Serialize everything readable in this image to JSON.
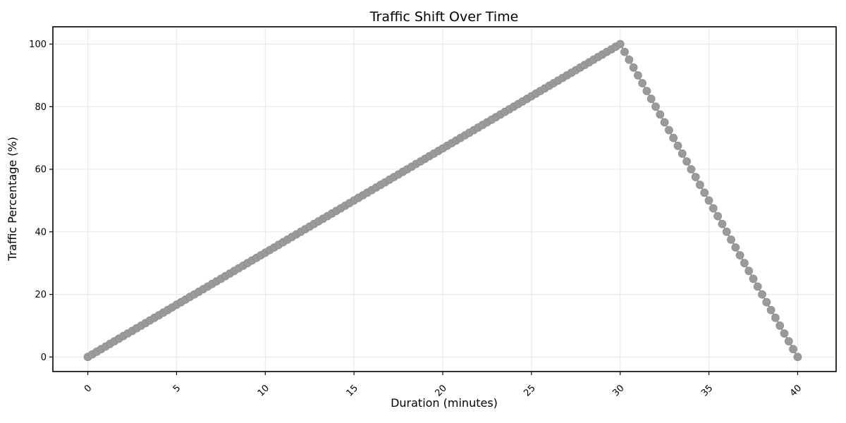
{
  "chart_data": {
    "type": "line",
    "marker": "circle",
    "title": "Traffic Shift Over Time",
    "xlabel": "Duration (minutes)",
    "ylabel": "Traffic Percentage (%)",
    "x_ticks": [
      0,
      5,
      10,
      15,
      20,
      25,
      30,
      35,
      40
    ],
    "y_ticks": [
      0,
      20,
      40,
      60,
      80,
      100
    ],
    "xlim": [
      -1.97,
      42.17
    ],
    "ylim": [
      -4.66,
      105.53
    ],
    "grid": true,
    "legend": "none",
    "colors": {
      "marker": "#9a9a9a",
      "marker_edge": "#8f8f8f",
      "line": "#9a9a9a",
      "grid": "#e7e7e7",
      "spine": "#000000",
      "background": "#ffffff"
    },
    "points": [
      [
        0,
        0
      ],
      [
        0.25,
        0.83
      ],
      [
        0.5,
        1.67
      ],
      [
        0.75,
        2.5
      ],
      [
        1,
        3.33
      ],
      [
        1.25,
        4.17
      ],
      [
        1.5,
        5
      ],
      [
        1.75,
        5.83
      ],
      [
        2,
        6.67
      ],
      [
        2.25,
        7.5
      ],
      [
        2.5,
        8.33
      ],
      [
        2.75,
        9.17
      ],
      [
        3,
        10
      ],
      [
        3.25,
        10.83
      ],
      [
        3.5,
        11.67
      ],
      [
        3.75,
        12.5
      ],
      [
        4,
        13.33
      ],
      [
        4.25,
        14.17
      ],
      [
        4.5,
        15
      ],
      [
        4.75,
        15.83
      ],
      [
        5,
        16.67
      ],
      [
        5.25,
        17.5
      ],
      [
        5.5,
        18.33
      ],
      [
        5.75,
        19.17
      ],
      [
        6,
        20
      ],
      [
        6.25,
        20.83
      ],
      [
        6.5,
        21.67
      ],
      [
        6.75,
        22.5
      ],
      [
        7,
        23.33
      ],
      [
        7.25,
        24.17
      ],
      [
        7.5,
        25
      ],
      [
        7.75,
        25.83
      ],
      [
        8,
        26.67
      ],
      [
        8.25,
        27.5
      ],
      [
        8.5,
        28.33
      ],
      [
        8.75,
        29.17
      ],
      [
        9,
        30
      ],
      [
        9.25,
        30.83
      ],
      [
        9.5,
        31.67
      ],
      [
        9.75,
        32.5
      ],
      [
        10,
        33.33
      ],
      [
        10.25,
        34.17
      ],
      [
        10.5,
        35
      ],
      [
        10.75,
        35.83
      ],
      [
        11,
        36.67
      ],
      [
        11.25,
        37.5
      ],
      [
        11.5,
        38.33
      ],
      [
        11.75,
        39.17
      ],
      [
        12,
        40
      ],
      [
        12.25,
        40.83
      ],
      [
        12.5,
        41.67
      ],
      [
        12.75,
        42.5
      ],
      [
        13,
        43.33
      ],
      [
        13.25,
        44.17
      ],
      [
        13.5,
        45
      ],
      [
        13.75,
        45.83
      ],
      [
        14,
        46.67
      ],
      [
        14.25,
        47.5
      ],
      [
        14.5,
        48.33
      ],
      [
        14.75,
        49.17
      ],
      [
        15,
        50
      ],
      [
        15.25,
        50.83
      ],
      [
        15.5,
        51.67
      ],
      [
        15.75,
        52.5
      ],
      [
        16,
        53.33
      ],
      [
        16.25,
        54.17
      ],
      [
        16.5,
        55
      ],
      [
        16.75,
        55.83
      ],
      [
        17,
        56.67
      ],
      [
        17.25,
        57.5
      ],
      [
        17.5,
        58.33
      ],
      [
        17.75,
        59.17
      ],
      [
        18,
        60
      ],
      [
        18.25,
        60.83
      ],
      [
        18.5,
        61.67
      ],
      [
        18.75,
        62.5
      ],
      [
        19,
        63.33
      ],
      [
        19.25,
        64.17
      ],
      [
        19.5,
        65
      ],
      [
        19.75,
        65.83
      ],
      [
        20,
        66.67
      ],
      [
        20.25,
        67.5
      ],
      [
        20.5,
        68.33
      ],
      [
        20.75,
        69.17
      ],
      [
        21,
        70
      ],
      [
        21.25,
        70.83
      ],
      [
        21.5,
        71.67
      ],
      [
        21.75,
        72.5
      ],
      [
        22,
        73.33
      ],
      [
        22.25,
        74.17
      ],
      [
        22.5,
        75
      ],
      [
        22.75,
        75.83
      ],
      [
        23,
        76.67
      ],
      [
        23.25,
        77.5
      ],
      [
        23.5,
        78.33
      ],
      [
        23.75,
        79.17
      ],
      [
        24,
        80
      ],
      [
        24.25,
        80.83
      ],
      [
        24.5,
        81.67
      ],
      [
        24.75,
        82.5
      ],
      [
        25,
        83.33
      ],
      [
        25.25,
        84.17
      ],
      [
        25.5,
        85
      ],
      [
        25.75,
        85.83
      ],
      [
        26,
        86.67
      ],
      [
        26.25,
        87.5
      ],
      [
        26.5,
        88.33
      ],
      [
        26.75,
        89.17
      ],
      [
        27,
        90
      ],
      [
        27.25,
        90.83
      ],
      [
        27.5,
        91.67
      ],
      [
        27.75,
        92.5
      ],
      [
        28,
        93.33
      ],
      [
        28.25,
        94.17
      ],
      [
        28.5,
        95
      ],
      [
        28.75,
        95.83
      ],
      [
        29,
        96.67
      ],
      [
        29.25,
        97.5
      ],
      [
        29.5,
        98.33
      ],
      [
        29.75,
        99.17
      ],
      [
        30,
        100
      ],
      [
        30.25,
        97.5
      ],
      [
        30.5,
        95
      ],
      [
        30.75,
        92.5
      ],
      [
        31,
        90
      ],
      [
        31.25,
        87.5
      ],
      [
        31.5,
        85
      ],
      [
        31.75,
        82.5
      ],
      [
        32,
        80
      ],
      [
        32.25,
        77.5
      ],
      [
        32.5,
        75
      ],
      [
        32.75,
        72.5
      ],
      [
        33,
        70
      ],
      [
        33.25,
        67.5
      ],
      [
        33.5,
        65
      ],
      [
        33.75,
        62.5
      ],
      [
        34,
        60
      ],
      [
        34.25,
        57.5
      ],
      [
        34.5,
        55
      ],
      [
        34.75,
        52.5
      ],
      [
        35,
        50
      ],
      [
        35.25,
        47.5
      ],
      [
        35.5,
        45
      ],
      [
        35.75,
        42.5
      ],
      [
        36,
        40
      ],
      [
        36.25,
        37.5
      ],
      [
        36.5,
        35
      ],
      [
        36.75,
        32.5
      ],
      [
        37,
        30
      ],
      [
        37.25,
        27.5
      ],
      [
        37.5,
        25
      ],
      [
        37.75,
        22.5
      ],
      [
        38,
        20
      ],
      [
        38.25,
        17.5
      ],
      [
        38.5,
        15
      ],
      [
        38.75,
        12.5
      ],
      [
        39,
        10
      ],
      [
        39.25,
        7.5
      ],
      [
        39.5,
        5
      ],
      [
        39.75,
        2.5
      ],
      [
        40,
        0
      ]
    ]
  }
}
